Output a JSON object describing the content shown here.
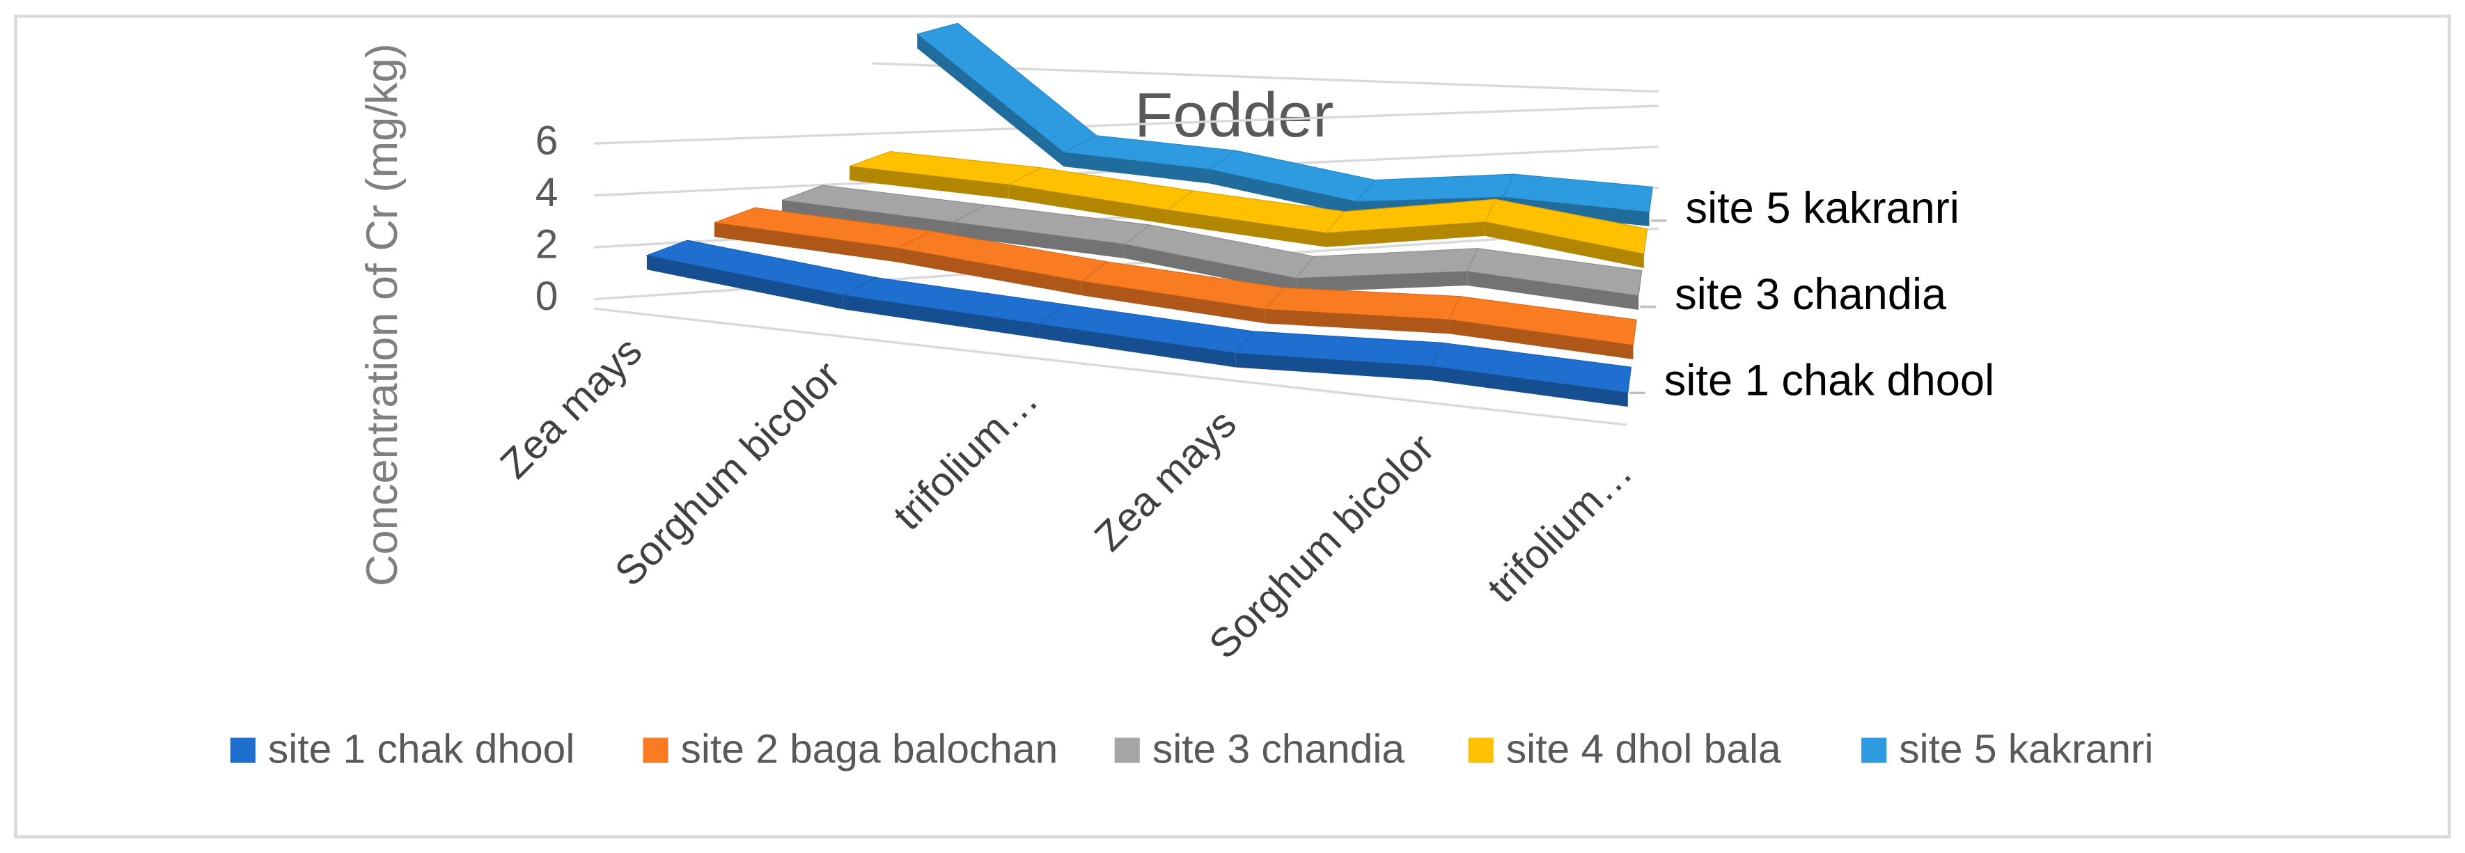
{
  "chart_data": {
    "type": "line3d",
    "title": "Fodder",
    "y_label": "Concentration of Cr (mg/kg)",
    "categories": [
      "Zea mays",
      "Sorghum bicolor",
      "trifolium…",
      "Zea mays",
      "Sorghum bicolor",
      "trifolium…"
    ],
    "series": [
      {
        "name": "site 1 chak dhool",
        "color": "#1f6fd0",
        "values": [
          1.2,
          0.6,
          0.4,
          0.2,
          0.6,
          0.5
        ]
      },
      {
        "name": "site 2 baga balochan",
        "color": "#f97c22",
        "values": [
          1.5,
          1.3,
          0.8,
          0.5,
          0.9,
          0.7
        ]
      },
      {
        "name": "site 3 chandia",
        "color": "#a5a5a5",
        "values": [
          1.4,
          1.2,
          1.0,
          0.3,
          1.3,
          1.0
        ]
      },
      {
        "name": "site 4 dhol bala",
        "color": "#ffc000",
        "values": [
          1.8,
          1.6,
          1.1,
          0.7,
          1.8,
          1.0
        ]
      },
      {
        "name": "site 5 kakranri",
        "color": "#2e9be0",
        "values": [
          6.8,
          1.8,
          1.5,
          0.5,
          1.2,
          1.0
        ]
      }
    ],
    "depth_labels_every": 2,
    "ylim": [
      0,
      7
    ],
    "yticks": [
      0,
      2,
      4,
      6
    ],
    "grid": true
  }
}
